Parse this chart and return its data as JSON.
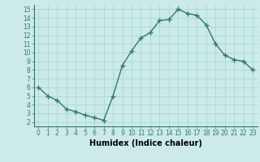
{
  "x": [
    0,
    1,
    2,
    3,
    4,
    5,
    6,
    7,
    8,
    9,
    10,
    11,
    12,
    13,
    14,
    15,
    16,
    17,
    18,
    19,
    20,
    21,
    22,
    23
  ],
  "y": [
    6.0,
    5.0,
    4.5,
    3.5,
    3.2,
    2.8,
    2.5,
    2.2,
    5.0,
    8.5,
    10.2,
    11.7,
    12.3,
    13.7,
    13.8,
    15.0,
    14.5,
    14.3,
    13.2,
    11.0,
    9.7,
    9.2,
    9.0,
    8.0
  ],
  "line_color": "#2d7a6b",
  "marker": "+",
  "markersize": 4,
  "linewidth": 1.0,
  "xlabel": "Humidex (Indice chaleur)",
  "xlim": [
    -0.5,
    23.5
  ],
  "ylim": [
    1.5,
    15.5
  ],
  "yticks": [
    2,
    3,
    4,
    5,
    6,
    7,
    8,
    9,
    10,
    11,
    12,
    13,
    14,
    15
  ],
  "xticks": [
    0,
    1,
    2,
    3,
    4,
    5,
    6,
    7,
    8,
    9,
    10,
    11,
    12,
    13,
    14,
    15,
    16,
    17,
    18,
    19,
    20,
    21,
    22,
    23
  ],
  "bg_color": "#cceaea",
  "grid_color": "#b0d8d8",
  "tick_fontsize": 5.5,
  "label_fontsize": 7,
  "markeredgewidth": 1.0
}
